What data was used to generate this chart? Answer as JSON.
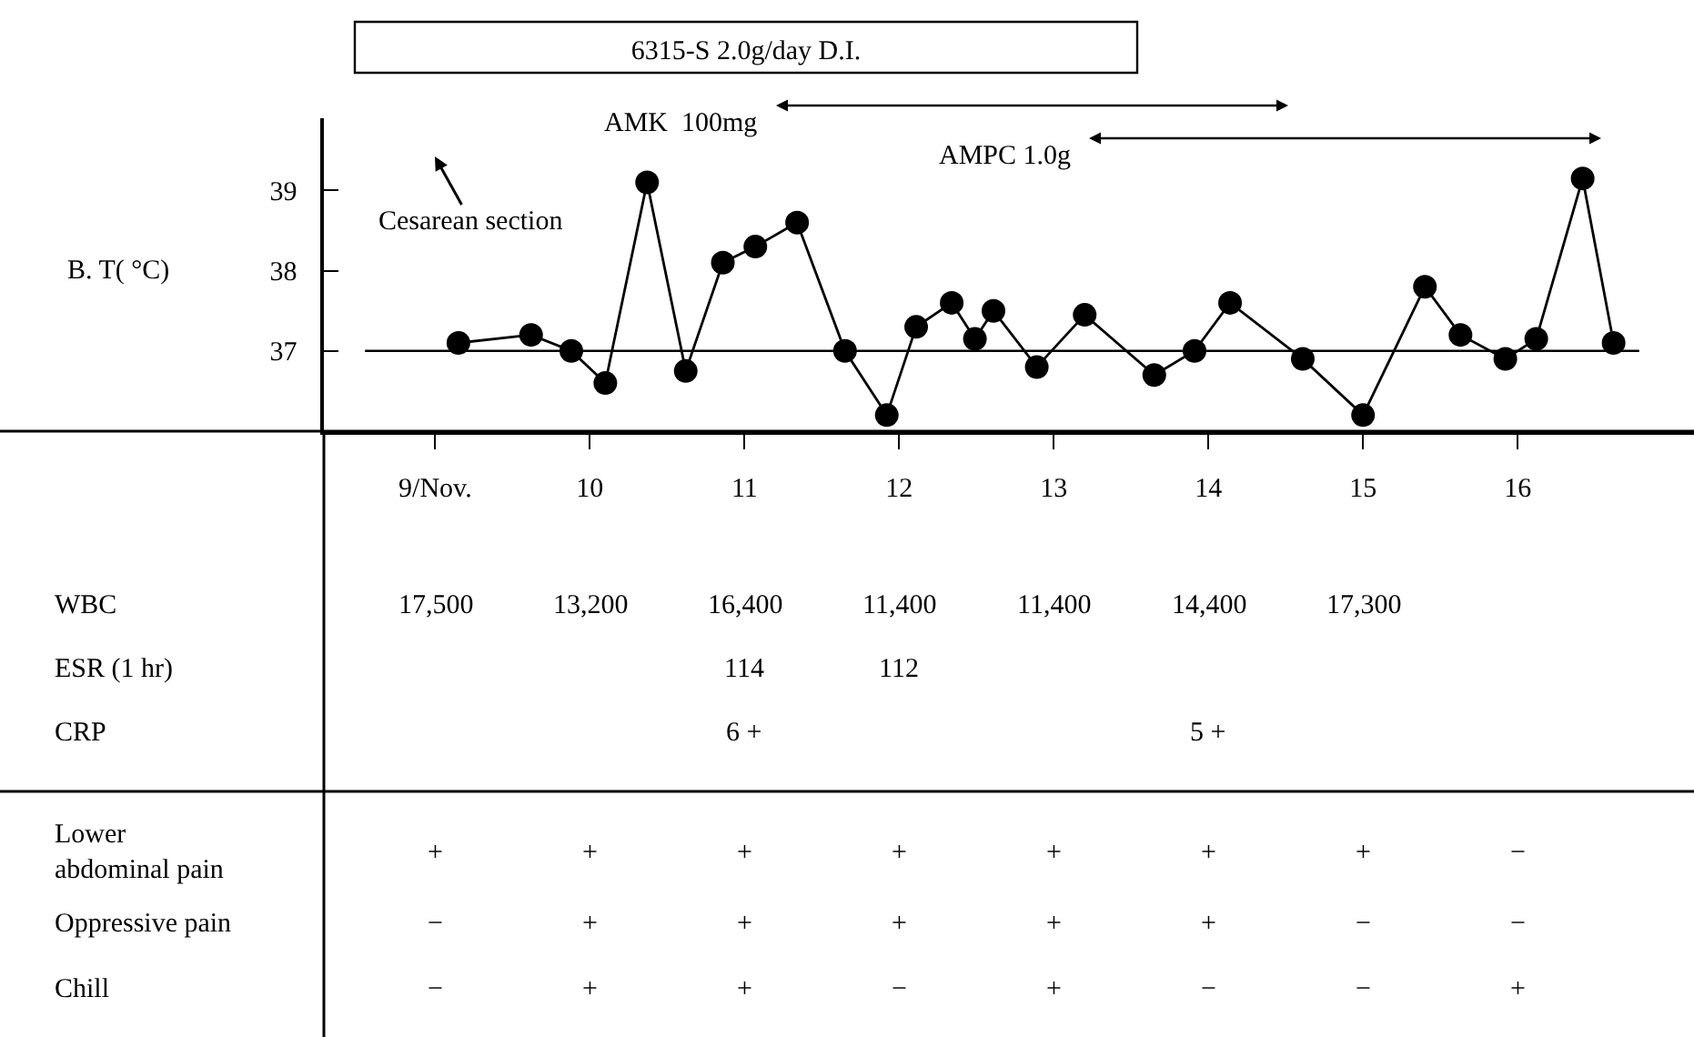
{
  "chart_data": {
    "type": "line",
    "title": "6315-S 2.0g/day D.I.",
    "ylabel": "B. T( °C)",
    "x": [
      9.15,
      9.62,
      9.88,
      10.1,
      10.37,
      10.62,
      10.86,
      11.07,
      11.34,
      11.65,
      11.92,
      12.11,
      12.34,
      12.49,
      12.61,
      12.89,
      13.2,
      13.65,
      13.91,
      14.14,
      14.61,
      15.0,
      15.4,
      15.63,
      15.92,
      16.12,
      16.42,
      16.62
    ],
    "series": [
      {
        "color": "#000000",
        "values": [
          37.1,
          37.2,
          37.0,
          36.6,
          39.1,
          36.75,
          38.1,
          38.3,
          38.6,
          37.0,
          36.2,
          37.3,
          37.6,
          37.15,
          37.5,
          36.8,
          37.45,
          36.7,
          37.0,
          37.6,
          36.9,
          36.2,
          37.8,
          37.2,
          36.9,
          37.15,
          39.15,
          37.1
        ]
      }
    ],
    "xlim": [
      8.28,
      17.14
    ],
    "ylim": [
      36,
      39.9
    ],
    "xticks": [
      {
        "value": 9,
        "label": "9/Nov."
      },
      10,
      11,
      12,
      13,
      14,
      15,
      16
    ],
    "yticks": [
      37,
      38,
      39
    ],
    "ref_lines": [
      {
        "axis": "y",
        "value": 37,
        "color": "#000000"
      }
    ],
    "annotations": [
      "AMK  100mg",
      "AMPC 1.0g",
      "Cesarean section",
      "WBC",
      "17,500",
      "13,200",
      "16,400",
      "11,400",
      "11,400",
      "14,400",
      "17,300",
      null,
      "ESR (1 hr)",
      null,
      null,
      "114",
      "112",
      null,
      null,
      null,
      null,
      "CRP",
      null,
      null,
      "6 +",
      null,
      null,
      "5 +",
      null,
      null,
      "Lower\nabdominal pain",
      "+",
      "+",
      "+",
      "+",
      "+",
      "+",
      "+",
      "−",
      "Oppressive pain",
      "−",
      "+",
      "+",
      "+",
      "+",
      "+",
      "−",
      "−",
      "Chill",
      "−",
      "+",
      "+",
      "−",
      "+",
      "−",
      "−",
      "+"
    ],
    "grid": false,
    "legend": false,
    "marker": "circle",
    "line_style": "solid"
  }
}
